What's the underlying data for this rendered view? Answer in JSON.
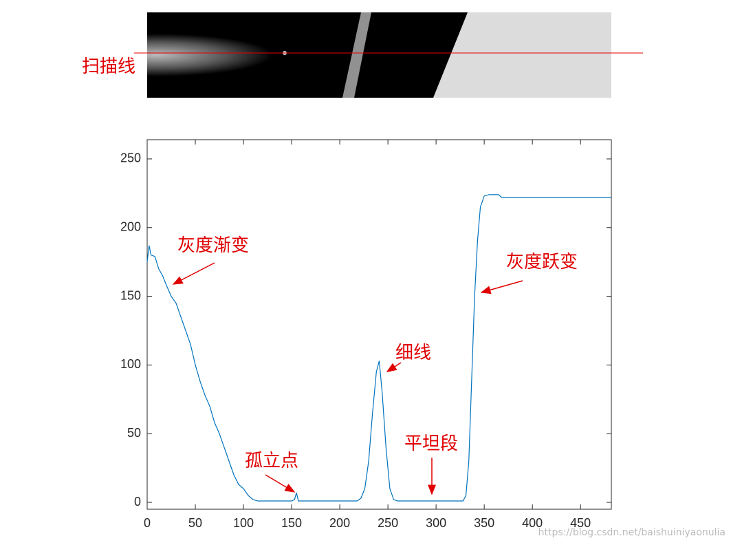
{
  "image": {
    "label": "扫描线"
  },
  "chart_data": {
    "type": "line",
    "x": [
      0,
      2,
      4,
      8,
      12,
      16,
      20,
      25,
      30,
      35,
      40,
      45,
      50,
      55,
      60,
      65,
      70,
      75,
      80,
      85,
      90,
      95,
      100,
      105,
      110,
      115,
      120,
      130,
      140,
      150,
      153,
      155,
      157,
      160,
      170,
      180,
      190,
      200,
      210,
      218,
      222,
      226,
      230,
      234,
      238,
      241,
      244,
      248,
      252,
      256,
      260,
      270,
      280,
      290,
      300,
      310,
      320,
      328,
      331,
      334,
      337,
      340,
      343,
      346,
      350,
      355,
      360,
      365,
      368,
      375,
      400,
      450,
      482
    ],
    "series": [
      {
        "color": "#0072bd",
        "values": [
          175,
          187,
          180,
          179,
          170,
          165,
          158,
          150,
          145,
          135,
          125,
          115,
          100,
          88,
          78,
          70,
          58,
          50,
          40,
          30,
          20,
          13,
          10,
          5,
          2,
          1,
          1,
          1,
          1,
          1,
          2,
          7,
          1,
          1,
          1,
          1,
          1,
          1,
          1,
          1,
          3,
          10,
          30,
          65,
          95,
          103,
          80,
          40,
          10,
          2,
          1,
          1,
          1,
          1,
          1,
          1,
          1,
          1,
          5,
          30,
          90,
          150,
          190,
          215,
          223,
          224,
          224,
          224,
          222,
          222,
          222,
          222,
          222
        ]
      }
    ],
    "xlim": [
      0,
      482
    ],
    "ylim": [
      -5,
      264
    ],
    "xticks": [
      0,
      50,
      100,
      150,
      200,
      250,
      300,
      350,
      400,
      450
    ],
    "yticks": [
      0,
      50,
      100,
      150,
      200,
      250
    ],
    "annotations": [
      "灰度渐变",
      "灰度跃变",
      "细线",
      "孤立点",
      "平坦段"
    ]
  },
  "watermark": "https://blog.csdn.net/baishuiniyaonulia"
}
